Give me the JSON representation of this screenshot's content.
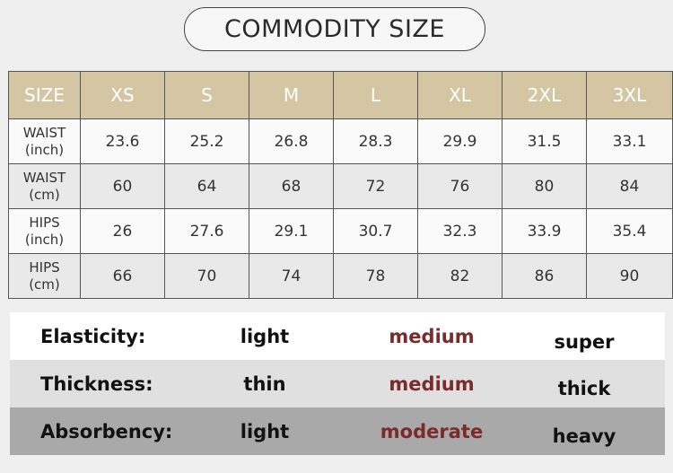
{
  "title": "COMMODITY SIZE",
  "table": {
    "header": [
      "SIZE",
      "XS",
      "S",
      "M",
      "L",
      "XL",
      "2XL",
      "3XL"
    ],
    "rows": [
      {
        "label": [
          "WAIST",
          "(inch)"
        ],
        "values": [
          23.6,
          25.2,
          26.8,
          28.3,
          29.9,
          31.5,
          33.1
        ]
      },
      {
        "label": [
          "WAIST",
          "(cm)"
        ],
        "values": [
          60,
          64,
          68,
          72,
          76,
          80,
          84
        ]
      },
      {
        "label": [
          "HIPS",
          "(inch)"
        ],
        "values": [
          26,
          27.6,
          29.1,
          30.7,
          32.3,
          33.9,
          35.4
        ]
      },
      {
        "label": [
          "HIPS",
          "(cm)"
        ],
        "values": [
          66,
          70,
          74,
          78,
          82,
          86,
          90
        ]
      }
    ]
  },
  "properties": [
    {
      "label": "Elasticity:",
      "options": [
        "light",
        "medium",
        "super"
      ]
    },
    {
      "label": "Thickness:",
      "options": [
        "thin",
        "medium",
        "thick"
      ]
    },
    {
      "label": "Absorbency:",
      "options": [
        "light",
        "moderate",
        "heavy"
      ]
    }
  ]
}
